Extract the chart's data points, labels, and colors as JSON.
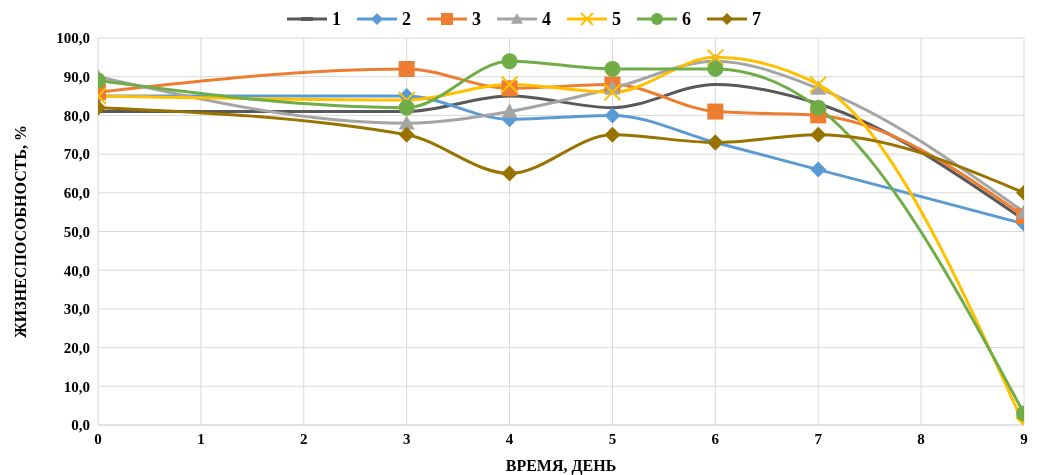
{
  "chart_data": {
    "type": "line",
    "xlabel": "ВРЕМЯ, ДЕНЬ",
    "ylabel": "ЖИЗНЕСПОСОБНОСТЬ, %",
    "x": [
      0,
      3,
      4,
      5,
      6,
      7,
      9
    ],
    "xlim": [
      0,
      9
    ],
    "xticks": [
      0,
      1,
      2,
      3,
      4,
      5,
      6,
      7,
      8,
      9
    ],
    "ylim": [
      0,
      100
    ],
    "yticks": [
      {
        "value": 0,
        "label": "0,0"
      },
      {
        "value": 10,
        "label": "10,0"
      },
      {
        "value": 20,
        "label": "20,0"
      },
      {
        "value": 30,
        "label": "30,0"
      },
      {
        "value": 40,
        "label": "40,0"
      },
      {
        "value": 50,
        "label": "50,0"
      },
      {
        "value": 60,
        "label": "60,0"
      },
      {
        "value": 70,
        "label": "70,0"
      },
      {
        "value": 80,
        "label": "80,0"
      },
      {
        "value": 90,
        "label": "90,0"
      },
      {
        "value": 100,
        "label": "100,0"
      }
    ],
    "grid": true,
    "legend": "top",
    "series": [
      {
        "name": "1",
        "color": "#595959",
        "marker": "none",
        "values": [
          81,
          81,
          85,
          82,
          88,
          83,
          53
        ]
      },
      {
        "name": "2",
        "color": "#5b9bd5",
        "marker": "diamond",
        "values": [
          85,
          85,
          79,
          80,
          73,
          66,
          52
        ]
      },
      {
        "name": "3",
        "color": "#ed7d31",
        "marker": "square",
        "values": [
          86,
          92,
          87,
          88,
          81,
          80,
          54
        ]
      },
      {
        "name": "4",
        "color": "#a5a5a5",
        "marker": "triangle",
        "values": [
          90,
          78,
          81,
          87,
          94,
          87,
          55
        ]
      },
      {
        "name": "5",
        "color": "#ffc000",
        "marker": "cross",
        "values": [
          85,
          84,
          88,
          86,
          95,
          88,
          0
        ]
      },
      {
        "name": "6",
        "color": "#70ad47",
        "marker": "circle",
        "values": [
          89,
          82,
          94,
          92,
          92,
          82,
          3
        ]
      },
      {
        "name": "7",
        "color": "#997300",
        "marker": "diamond",
        "values": [
          82,
          75,
          65,
          75,
          73,
          75,
          60
        ]
      }
    ]
  }
}
